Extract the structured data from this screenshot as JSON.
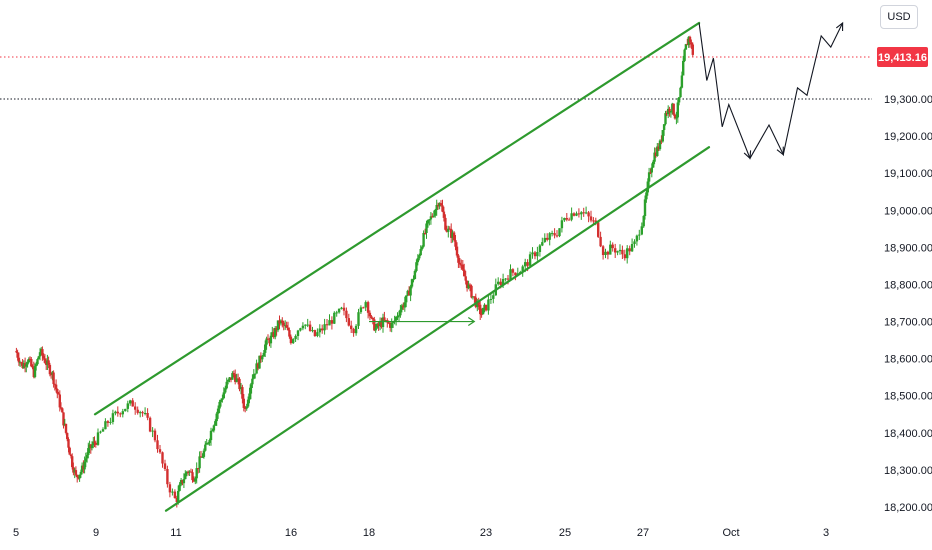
{
  "currency_button": "USD",
  "chart_data": {
    "type": "candlestick",
    "title": "",
    "xlabel": "",
    "ylabel": "",
    "ylim": [
      18160,
      19540
    ],
    "y_ticks": [
      {
        "value": 18200,
        "label": "18,200.00"
      },
      {
        "value": 18300,
        "label": "18,300.00"
      },
      {
        "value": 18400,
        "label": "18,400.00"
      },
      {
        "value": 18500,
        "label": "18,500.00"
      },
      {
        "value": 18600,
        "label": "18,600.00"
      },
      {
        "value": 18700,
        "label": "18,700.00"
      },
      {
        "value": 18800,
        "label": "18,800.00"
      },
      {
        "value": 18900,
        "label": "18,900.00"
      },
      {
        "value": 19000,
        "label": "19,000.00"
      },
      {
        "value": 19100,
        "label": "19,100.00"
      },
      {
        "value": 19200,
        "label": "19,200.00"
      },
      {
        "value": 19300,
        "label": "19,300.00"
      }
    ],
    "x_ticks": [
      {
        "t": 0,
        "label": "5"
      },
      {
        "t": 4,
        "label": "9"
      },
      {
        "t": 6,
        "label": "11"
      },
      {
        "t": 11,
        "label": "16"
      },
      {
        "t": 13,
        "label": "18"
      },
      {
        "t": 18,
        "label": "23"
      },
      {
        "t": 20,
        "label": "25"
      },
      {
        "t": 22,
        "label": "27"
      },
      {
        "t": 26,
        "label": "Oct"
      },
      {
        "t": 28,
        "label": "3"
      }
    ],
    "price_path": [
      [
        0.0,
        18620
      ],
      [
        0.3,
        18580
      ],
      [
        0.6,
        18600
      ],
      [
        0.9,
        18560
      ],
      [
        1.2,
        18620
      ],
      [
        1.5,
        18590
      ],
      [
        1.8,
        18560
      ],
      [
        2.1,
        18500
      ],
      [
        2.5,
        18400
      ],
      [
        2.8,
        18320
      ],
      [
        3.0,
        18280
      ],
      [
        3.3,
        18300
      ],
      [
        3.6,
        18350
      ],
      [
        4.0,
        18380
      ],
      [
        4.3,
        18430
      ],
      [
        4.6,
        18460
      ],
      [
        4.9,
        18480
      ],
      [
        5.2,
        18450
      ],
      [
        5.5,
        18380
      ],
      [
        5.8,
        18260
      ],
      [
        6.0,
        18215
      ],
      [
        6.2,
        18260
      ],
      [
        6.5,
        18300
      ],
      [
        6.8,
        18280
      ],
      [
        7.0,
        18320
      ],
      [
        7.3,
        18360
      ],
      [
        7.6,
        18420
      ],
      [
        7.9,
        18480
      ],
      [
        8.2,
        18530
      ],
      [
        8.5,
        18560
      ],
      [
        8.8,
        18520
      ],
      [
        9.0,
        18460
      ],
      [
        9.3,
        18550
      ],
      [
        9.6,
        18590
      ],
      [
        9.9,
        18640
      ],
      [
        10.2,
        18660
      ],
      [
        10.5,
        18700
      ],
      [
        10.8,
        18680
      ],
      [
        11.0,
        18650
      ],
      [
        11.3,
        18700
      ],
      [
        11.6,
        18660
      ],
      [
        12.0,
        18700
      ],
      [
        12.3,
        18730
      ],
      [
        12.6,
        18680
      ],
      [
        12.9,
        18760
      ],
      [
        13.1,
        18700
      ],
      [
        13.3,
        18680
      ],
      [
        13.6,
        18700
      ],
      [
        14.0,
        18690
      ],
      [
        14.3,
        18730
      ],
      [
        14.6,
        18760
      ],
      [
        14.9,
        18820
      ],
      [
        15.2,
        18900
      ],
      [
        15.5,
        18960
      ],
      [
        15.8,
        19000
      ],
      [
        16.0,
        19030
      ],
      [
        16.3,
        18950
      ],
      [
        16.6,
        18930
      ],
      [
        16.9,
        18850
      ],
      [
        17.2,
        18800
      ],
      [
        17.5,
        18760
      ],
      [
        17.8,
        18720
      ],
      [
        18.0,
        18740
      ],
      [
        18.3,
        18800
      ],
      [
        18.6,
        18830
      ],
      [
        18.9,
        18840
      ],
      [
        19.2,
        18880
      ],
      [
        19.5,
        18920
      ],
      [
        19.8,
        18940
      ],
      [
        20.0,
        18980
      ],
      [
        20.3,
        19000
      ],
      [
        20.5,
        18990
      ],
      [
        20.8,
        18960
      ],
      [
        21.0,
        18880
      ],
      [
        21.2,
        18900
      ],
      [
        21.5,
        18880
      ],
      [
        21.8,
        18910
      ],
      [
        22.0,
        18980
      ],
      [
        22.3,
        19100
      ],
      [
        22.5,
        19150
      ],
      [
        22.8,
        19180
      ],
      [
        23.0,
        19260
      ],
      [
        23.3,
        19280
      ],
      [
        23.5,
        19250
      ],
      [
        23.7,
        19320
      ],
      [
        23.9,
        19430
      ],
      [
        24.1,
        19470
      ],
      [
        24.3,
        19413
      ]
    ],
    "last_price": {
      "value": 19413.16,
      "label": "19,413.16"
    },
    "reference_line": {
      "value": 19300
    },
    "channel": {
      "upper": [
        [
          3.95,
          18450
        ],
        [
          24.55,
          19505
        ]
      ],
      "lower": [
        [
          5.75,
          18190
        ],
        [
          25.0,
          19170
        ]
      ]
    },
    "horizontal_arrow": {
      "from": [
        13.0,
        18700
      ],
      "to": [
        17.5,
        18700
      ]
    },
    "projection_path": [
      [
        24.55,
        19505
      ],
      [
        24.9,
        19350
      ],
      [
        25.2,
        19410
      ],
      [
        25.6,
        19225
      ],
      [
        25.9,
        19285
      ],
      [
        26.4,
        19140
      ],
      [
        26.8,
        19230
      ],
      [
        27.1,
        19150
      ],
      [
        27.4,
        19330
      ],
      [
        27.6,
        19310
      ],
      [
        27.9,
        19470
      ],
      [
        28.1,
        19440
      ],
      [
        28.35,
        19505
      ]
    ]
  }
}
